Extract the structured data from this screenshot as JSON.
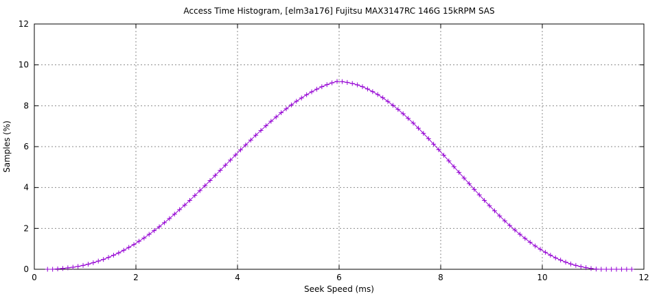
{
  "chart_data": {
    "type": "line",
    "title": "Access Time Histogram, [elm3a176] Fujitsu MAX3147RC 146G 15kRPM SAS",
    "xlabel": "Seek Speed (ms)",
    "ylabel": "Samples (%)",
    "xlim": [
      0,
      12
    ],
    "ylim": [
      0,
      12
    ],
    "xticks": [
      0,
      2,
      4,
      6,
      8,
      10,
      12
    ],
    "yticks": [
      0,
      2,
      4,
      6,
      8,
      10,
      12
    ],
    "grid": true,
    "legend": "none",
    "series": [
      {
        "color": "#9400d3",
        "marker": "plus",
        "x": [
          0.26,
          0.36,
          0.46,
          0.56,
          0.66,
          0.76,
          0.86,
          0.96,
          1.06,
          1.16,
          1.26,
          1.36,
          1.46,
          1.56,
          1.66,
          1.76,
          1.86,
          1.96,
          2.06,
          2.16,
          2.26,
          2.36,
          2.46,
          2.56,
          2.66,
          2.76,
          2.86,
          2.96,
          3.06,
          3.16,
          3.26,
          3.36,
          3.46,
          3.56,
          3.66,
          3.76,
          3.86,
          3.96,
          4.06,
          4.16,
          4.26,
          4.36,
          4.46,
          4.56,
          4.66,
          4.76,
          4.86,
          4.96,
          5.06,
          5.16,
          5.26,
          5.36,
          5.46,
          5.56,
          5.66,
          5.76,
          5.86,
          5.96,
          6.06,
          6.16,
          6.26,
          6.36,
          6.46,
          6.56,
          6.66,
          6.76,
          6.86,
          6.96,
          7.06,
          7.16,
          7.26,
          7.36,
          7.46,
          7.56,
          7.66,
          7.76,
          7.86,
          7.96,
          8.06,
          8.16,
          8.26,
          8.36,
          8.46,
          8.56,
          8.66,
          8.76,
          8.86,
          8.96,
          9.06,
          9.16,
          9.26,
          9.36,
          9.46,
          9.56,
          9.66,
          9.76,
          9.86,
          9.96,
          10.06,
          10.16,
          10.26,
          10.36,
          10.46,
          10.56,
          10.66,
          10.76,
          10.86,
          10.96,
          11.06,
          11.16,
          11.26,
          11.36,
          11.46,
          11.56,
          11.66,
          11.76
        ],
        "y": [
          0.0,
          0.0,
          0.02,
          0.04,
          0.07,
          0.1,
          0.14,
          0.19,
          0.25,
          0.32,
          0.4,
          0.48,
          0.58,
          0.69,
          0.8,
          0.93,
          1.07,
          1.21,
          1.37,
          1.53,
          1.71,
          1.89,
          2.08,
          2.28,
          2.48,
          2.7,
          2.92,
          3.14,
          3.37,
          3.61,
          3.85,
          4.09,
          4.34,
          4.59,
          4.84,
          5.09,
          5.34,
          5.59,
          5.84,
          6.08,
          6.32,
          6.56,
          6.79,
          7.02,
          7.24,
          7.45,
          7.66,
          7.85,
          8.04,
          8.22,
          8.38,
          8.54,
          8.68,
          8.81,
          8.93,
          9.03,
          9.12,
          9.19,
          9.18,
          9.14,
          9.09,
          9.02,
          8.93,
          8.82,
          8.69,
          8.55,
          8.39,
          8.21,
          8.02,
          7.82,
          7.61,
          7.38,
          7.15,
          6.9,
          6.65,
          6.39,
          6.12,
          5.85,
          5.58,
          5.3,
          5.02,
          4.74,
          4.46,
          4.19,
          3.91,
          3.64,
          3.37,
          3.11,
          2.86,
          2.61,
          2.37,
          2.14,
          1.92,
          1.71,
          1.51,
          1.32,
          1.14,
          0.98,
          0.83,
          0.69,
          0.56,
          0.45,
          0.35,
          0.26,
          0.19,
          0.13,
          0.08,
          0.04,
          0.01,
          0.0,
          0.0,
          0.0,
          0.0,
          0.0,
          0.0,
          0.0
        ]
      }
    ]
  }
}
